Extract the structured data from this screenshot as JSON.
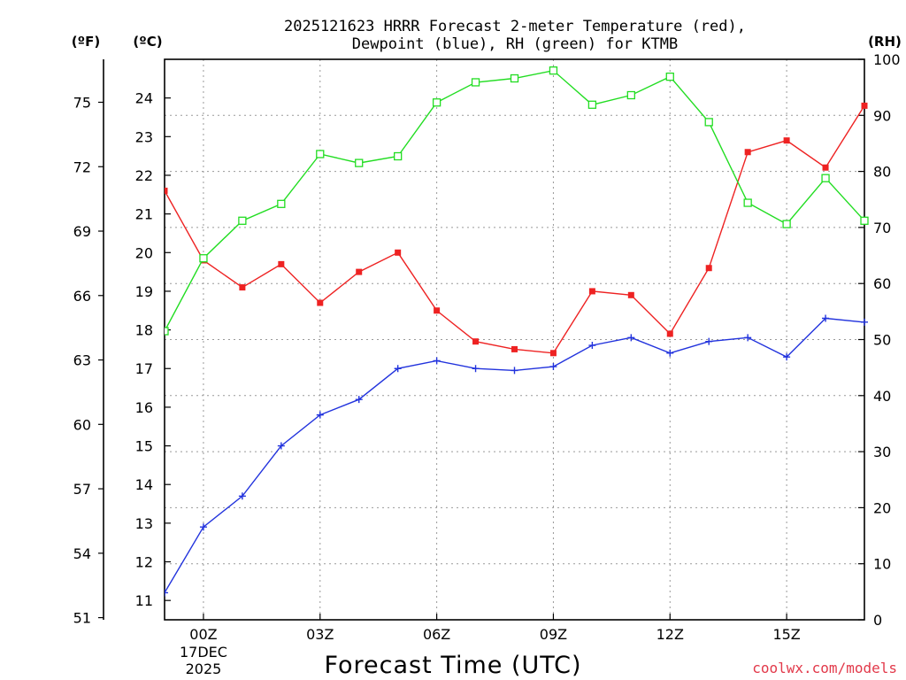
{
  "chart_data": {
    "type": "line",
    "title_line1": "2025121623 HRRR Forecast 2-meter Temperature (red),",
    "title_line2": "Dewpoint (blue), RH (green) for KTMB",
    "xlabel": "Forecast Time (UTC)",
    "left_outer_unit": "(ºF)",
    "left_inner_unit": "(ºC)",
    "right_unit": "(RH)",
    "credit": "coolwx.com/models",
    "x_hours": [
      -1,
      0,
      1,
      2,
      3,
      4,
      5,
      6,
      7,
      8,
      9,
      10,
      11,
      12,
      13,
      14,
      15,
      16,
      17
    ],
    "xlim": [
      -1,
      17
    ],
    "x_ticks": [
      {
        "hour": 0,
        "label": "00Z",
        "date_line1": "17DEC",
        "date_line2": "2025"
      },
      {
        "hour": 3,
        "label": "03Z"
      },
      {
        "hour": 6,
        "label": "06Z"
      },
      {
        "hour": 9,
        "label": "09Z"
      },
      {
        "hour": 12,
        "label": "12Z"
      },
      {
        "hour": 15,
        "label": "15Z"
      }
    ],
    "celsius_axis": {
      "ylim": [
        10.5,
        25.0
      ],
      "ticks": [
        11,
        12,
        13,
        14,
        15,
        16,
        17,
        18,
        19,
        20,
        21,
        22,
        23,
        24
      ]
    },
    "fahrenheit_axis": {
      "ticks": [
        51,
        54,
        57,
        60,
        63,
        66,
        69,
        72,
        75
      ]
    },
    "rh_axis": {
      "ylim": [
        0,
        100
      ],
      "ticks": [
        0,
        10,
        20,
        30,
        40,
        50,
        60,
        70,
        80,
        90,
        100
      ]
    },
    "series": [
      {
        "name": "Temperature",
        "axis": "celsius",
        "color": "#ee2222",
        "marker": "filled-square",
        "values": [
          21.6,
          19.8,
          19.1,
          19.7,
          18.7,
          19.5,
          20.0,
          18.5,
          17.7,
          17.5,
          17.4,
          19.0,
          18.9,
          17.9,
          19.6,
          22.6,
          22.9,
          22.2,
          23.8
        ]
      },
      {
        "name": "Dewpoint",
        "axis": "celsius",
        "color": "#2233dd",
        "marker": "plus",
        "values": [
          11.2,
          12.9,
          13.7,
          15.0,
          15.8,
          16.2,
          17.0,
          17.2,
          17.0,
          16.95,
          17.05,
          17.6,
          17.8,
          17.4,
          17.7,
          17.8,
          17.3,
          18.3,
          18.2
        ]
      },
      {
        "name": "RH",
        "axis": "rh",
        "color": "#22dd22",
        "marker": "open-square",
        "values": [
          51.5,
          64.5,
          71.2,
          74.2,
          83.1,
          81.5,
          82.7,
          92.3,
          95.9,
          96.6,
          98.0,
          91.9,
          93.6,
          96.9,
          88.8,
          74.4,
          70.6,
          78.8,
          71.2
        ]
      }
    ]
  }
}
